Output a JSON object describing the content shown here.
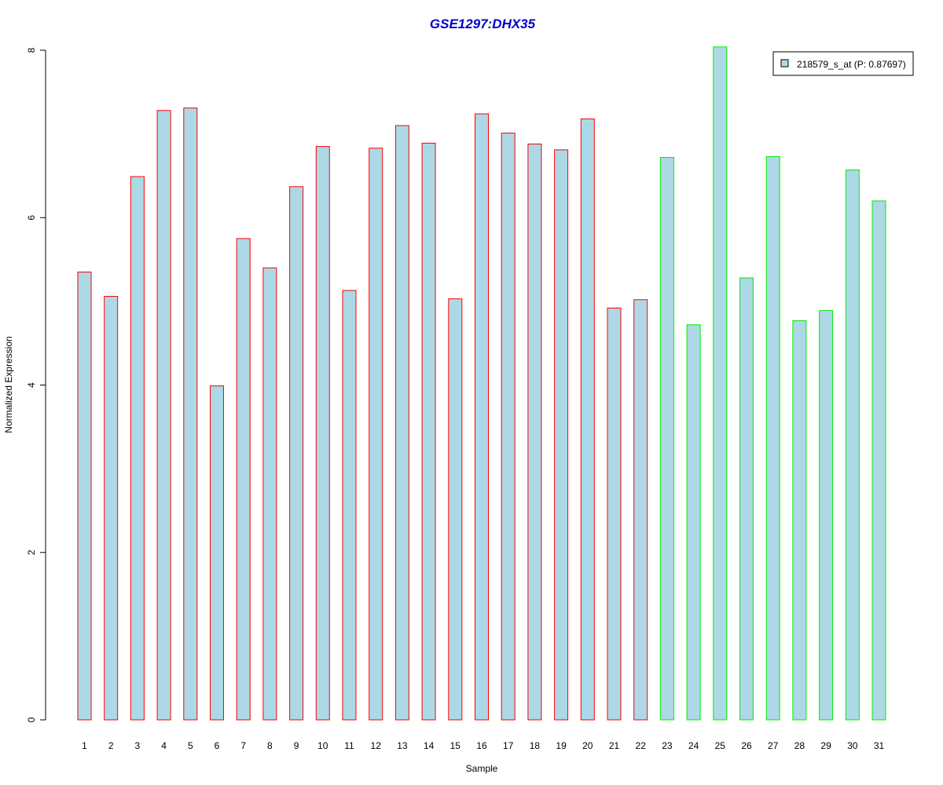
{
  "colors": {
    "title": "#0000cc",
    "bar_fill": "#add8e6",
    "group1_border": "#ff0000",
    "group2_border": "#00ee00",
    "axis": "#000000"
  },
  "chart_data": {
    "type": "bar",
    "title": "GSE1297:DHX35",
    "xlabel": "Sample",
    "ylabel": "Normalized Expression",
    "ylim": [
      0,
      8
    ],
    "yticks": [
      "0",
      "2",
      "4",
      "6",
      "8"
    ],
    "legend": {
      "label": "218579_s_at (P: 0.87697)",
      "position": "top-right"
    },
    "grid": false,
    "categories": [
      "1",
      "2",
      "3",
      "4",
      "5",
      "6",
      "7",
      "8",
      "9",
      "10",
      "11",
      "12",
      "13",
      "14",
      "15",
      "16",
      "17",
      "18",
      "19",
      "20",
      "21",
      "22",
      "23",
      "24",
      "25",
      "26",
      "27",
      "28",
      "29",
      "30",
      "31"
    ],
    "values": [
      5.35,
      5.06,
      6.49,
      7.28,
      7.31,
      3.99,
      5.75,
      5.4,
      6.37,
      6.85,
      5.13,
      6.83,
      7.1,
      6.89,
      5.03,
      7.24,
      7.01,
      6.88,
      6.81,
      7.18,
      4.92,
      5.02,
      6.72,
      4.72,
      8.04,
      5.28,
      6.73,
      4.77,
      4.89,
      6.57,
      6.2
    ],
    "groups": [
      1,
      1,
      1,
      1,
      1,
      1,
      1,
      1,
      1,
      1,
      1,
      1,
      1,
      1,
      1,
      1,
      1,
      1,
      1,
      1,
      1,
      1,
      2,
      2,
      2,
      2,
      2,
      2,
      2,
      2,
      2
    ]
  }
}
